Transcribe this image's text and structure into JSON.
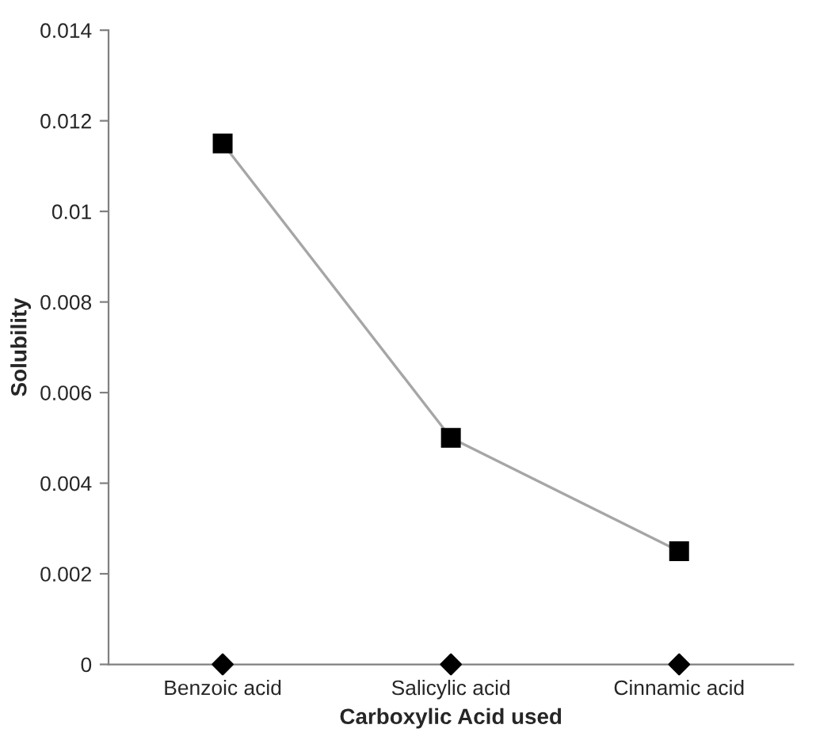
{
  "chart_data": {
    "type": "line",
    "xlabel": "Carboxylic Acid used",
    "ylabel": "Solubility",
    "categories": [
      "Benzoic acid",
      "Salicylic acid",
      "Cinnamic acid"
    ],
    "series": [
      {
        "color": "#000000",
        "values": [
          0.0115,
          0.005,
          0.0025
        ],
        "marker": "square",
        "line_style": "solid"
      },
      {
        "type": "scatter",
        "color": "#000000",
        "values": [
          0,
          0,
          0
        ],
        "marker": "diamond"
      }
    ],
    "ylim": [
      0,
      0.014
    ],
    "yticks": [
      0,
      0.002,
      0.004,
      0.006,
      0.008,
      0.01,
      0.012,
      0.014
    ],
    "grid": false,
    "legend": false
  }
}
